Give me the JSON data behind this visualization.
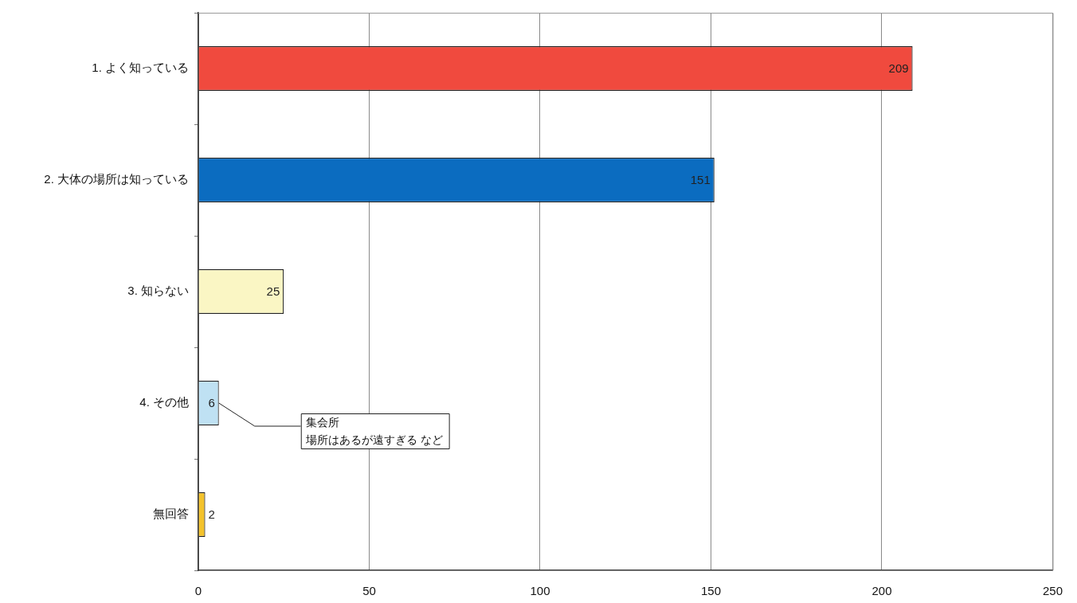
{
  "chart_data": {
    "type": "bar",
    "orientation": "horizontal",
    "categories": [
      "1. よく知っている",
      "2. 大体の場所は知っている",
      "3. 知らない",
      "4. その他",
      "無回答"
    ],
    "values": [
      209,
      151,
      25,
      6,
      2
    ],
    "colors": [
      "#f04a3e",
      "#0b6cc0",
      "#faf6c4",
      "#bfe1f3",
      "#f3c22c"
    ],
    "xlim": [
      0,
      250
    ],
    "xticks": [
      0,
      50,
      100,
      150,
      200,
      250
    ],
    "grid": "x",
    "data_labels": true,
    "legend": false,
    "annotations": [
      {
        "text": "集会所",
        "x": 6,
        "y": "4. その他"
      },
      {
        "text": "場所はあるが遠すぎる など",
        "x": 6,
        "y": "4. その他"
      }
    ]
  }
}
